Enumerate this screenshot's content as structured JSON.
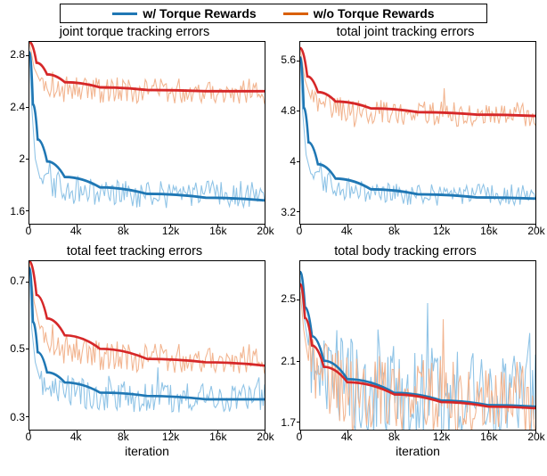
{
  "legend": {
    "items": [
      {
        "label": "w/ Torque Rewards",
        "color": "#1f77b4"
      },
      {
        "label": "w/o Torque Rewards",
        "color": "#d95f02"
      }
    ],
    "line_width": 3
  },
  "global": {
    "noise_color_blue": "#8ec3e6",
    "noise_color_orange": "#f2b48f",
    "line_color_blue": "#1f77b4",
    "line_color_orange": "#d62728",
    "smooth_line_width": 2.4,
    "noise_line_width": 1.0,
    "border_color": "#000000",
    "background": "#ffffff",
    "font_family": "sans-serif",
    "title_fontsize": 14.5,
    "tick_fontsize": 12,
    "xlabel_fontsize": 14
  },
  "panels": [
    {
      "id": "tl",
      "title": "joint torque tracking errors",
      "xlim": [
        0,
        20000
      ],
      "ylim": [
        1.5,
        2.9
      ],
      "xticks": [
        0,
        4000,
        8000,
        12000,
        16000,
        20000
      ],
      "xtick_labels": [
        "0",
        "4k",
        "8k",
        "12k",
        "16k",
        "20k"
      ],
      "yticks": [
        1.6,
        2.0,
        2.4,
        2.8
      ],
      "ytick_labels": [
        "1.6",
        "2",
        "2.4",
        "2.8"
      ],
      "xlabel": null,
      "blue_smooth": [
        [
          0,
          2.82
        ],
        [
          300,
          2.42
        ],
        [
          700,
          2.15
        ],
        [
          1500,
          1.98
        ],
        [
          3000,
          1.86
        ],
        [
          6000,
          1.78
        ],
        [
          10000,
          1.73
        ],
        [
          15000,
          1.7
        ],
        [
          20000,
          1.68
        ]
      ],
      "orange_smooth": [
        [
          0,
          2.9
        ],
        [
          600,
          2.74
        ],
        [
          1500,
          2.65
        ],
        [
          3000,
          2.59
        ],
        [
          6000,
          2.55
        ],
        [
          10000,
          2.53
        ],
        [
          15000,
          2.52
        ],
        [
          20000,
          2.52
        ]
      ],
      "blue_noise_center": 1.72,
      "blue_noise_amp": 0.11,
      "blue_noise_start": [
        [
          0,
          2.8
        ],
        [
          200,
          2.4
        ],
        [
          500,
          2.0
        ],
        [
          900,
          1.85
        ]
      ],
      "orange_noise_center": 2.52,
      "orange_noise_amp": 0.1,
      "orange_noise_start": [
        [
          0,
          2.9
        ],
        [
          400,
          2.7
        ],
        [
          900,
          2.6
        ]
      ]
    },
    {
      "id": "tr",
      "title": "total joint tracking errors",
      "xlim": [
        0,
        20000
      ],
      "ylim": [
        3.0,
        5.9
      ],
      "xticks": [
        0,
        4000,
        8000,
        12000,
        16000,
        20000
      ],
      "xtick_labels": [
        "0",
        "4k",
        "8k",
        "12k",
        "16k",
        "20k"
      ],
      "yticks": [
        3.2,
        4.0,
        4.8,
        5.6
      ],
      "ytick_labels": [
        "3.2",
        "4",
        "4.8",
        "5.6"
      ],
      "xlabel": null,
      "blue_smooth": [
        [
          0,
          5.65
        ],
        [
          300,
          4.85
        ],
        [
          700,
          4.3
        ],
        [
          1500,
          3.95
        ],
        [
          3000,
          3.72
        ],
        [
          6000,
          3.55
        ],
        [
          10000,
          3.47
        ],
        [
          15000,
          3.42
        ],
        [
          20000,
          3.4
        ]
      ],
      "orange_smooth": [
        [
          0,
          5.8
        ],
        [
          600,
          5.35
        ],
        [
          1500,
          5.1
        ],
        [
          3000,
          4.95
        ],
        [
          6000,
          4.84
        ],
        [
          10000,
          4.78
        ],
        [
          15000,
          4.74
        ],
        [
          20000,
          4.72
        ]
      ],
      "blue_noise_center": 3.45,
      "blue_noise_amp": 0.18,
      "blue_noise_start": [
        [
          0,
          5.6
        ],
        [
          200,
          4.8
        ],
        [
          500,
          4.1
        ],
        [
          900,
          3.8
        ]
      ],
      "orange_noise_center": 4.75,
      "orange_noise_amp": 0.2,
      "orange_noise_start": [
        [
          0,
          5.8
        ],
        [
          400,
          5.3
        ],
        [
          900,
          5.0
        ]
      ]
    },
    {
      "id": "bl",
      "title": "total feet tracking errors",
      "xlim": [
        0,
        20000
      ],
      "ylim": [
        0.26,
        0.76
      ],
      "xticks": [
        0,
        4000,
        8000,
        12000,
        16000,
        20000
      ],
      "xtick_labels": [
        "0",
        "4k",
        "8k",
        "12k",
        "16k",
        "20k"
      ],
      "yticks": [
        0.3,
        0.5,
        0.7
      ],
      "ytick_labels": [
        "0.3",
        "0.5",
        "0.7"
      ],
      "xlabel": "iteration",
      "blue_smooth": [
        [
          0,
          0.74
        ],
        [
          300,
          0.58
        ],
        [
          700,
          0.49
        ],
        [
          1500,
          0.43
        ],
        [
          3000,
          0.4
        ],
        [
          6000,
          0.37
        ],
        [
          10000,
          0.36
        ],
        [
          15000,
          0.35
        ],
        [
          20000,
          0.35
        ]
      ],
      "orange_smooth": [
        [
          0,
          0.76
        ],
        [
          600,
          0.66
        ],
        [
          1500,
          0.59
        ],
        [
          3000,
          0.54
        ],
        [
          6000,
          0.5
        ],
        [
          10000,
          0.47
        ],
        [
          15000,
          0.46
        ],
        [
          20000,
          0.45
        ]
      ],
      "blue_noise_center": 0.355,
      "blue_noise_amp": 0.045,
      "blue_noise_start": [
        [
          0,
          0.73
        ],
        [
          200,
          0.56
        ],
        [
          500,
          0.46
        ],
        [
          900,
          0.41
        ]
      ],
      "orange_noise_center": 0.47,
      "orange_noise_amp": 0.045,
      "orange_noise_start": [
        [
          0,
          0.76
        ],
        [
          400,
          0.64
        ],
        [
          900,
          0.56
        ]
      ]
    },
    {
      "id": "br",
      "title": "total body tracking errors",
      "xlim": [
        0,
        20000
      ],
      "ylim": [
        1.65,
        2.75
      ],
      "xticks": [
        0,
        4000,
        8000,
        12000,
        16000,
        20000
      ],
      "xtick_labels": [
        "0",
        "4k",
        "8k",
        "12k",
        "16k",
        "20k"
      ],
      "yticks": [
        1.7,
        2.1,
        2.5
      ],
      "ytick_labels": [
        "1.7",
        "2.1",
        "2.5"
      ],
      "xlabel": "iteration",
      "blue_smooth": [
        [
          0,
          2.68
        ],
        [
          400,
          2.45
        ],
        [
          1000,
          2.26
        ],
        [
          2000,
          2.1
        ],
        [
          4000,
          1.98
        ],
        [
          8000,
          1.89
        ],
        [
          12000,
          1.84
        ],
        [
          16000,
          1.81
        ],
        [
          20000,
          1.8
        ]
      ],
      "orange_smooth": [
        [
          0,
          2.6
        ],
        [
          400,
          2.38
        ],
        [
          1000,
          2.2
        ],
        [
          2000,
          2.06
        ],
        [
          4000,
          1.96
        ],
        [
          8000,
          1.88
        ],
        [
          12000,
          1.83
        ],
        [
          16000,
          1.8
        ],
        [
          20000,
          1.79
        ]
      ],
      "blue_noise_center": 1.88,
      "blue_noise_amp": 0.3,
      "blue_noise_start": [
        [
          0,
          2.65
        ],
        [
          300,
          2.4
        ],
        [
          700,
          2.2
        ]
      ],
      "orange_noise_center": 1.86,
      "orange_noise_amp": 0.25,
      "orange_noise_start": [
        [
          0,
          2.55
        ],
        [
          300,
          2.3
        ],
        [
          700,
          2.1
        ]
      ]
    }
  ]
}
